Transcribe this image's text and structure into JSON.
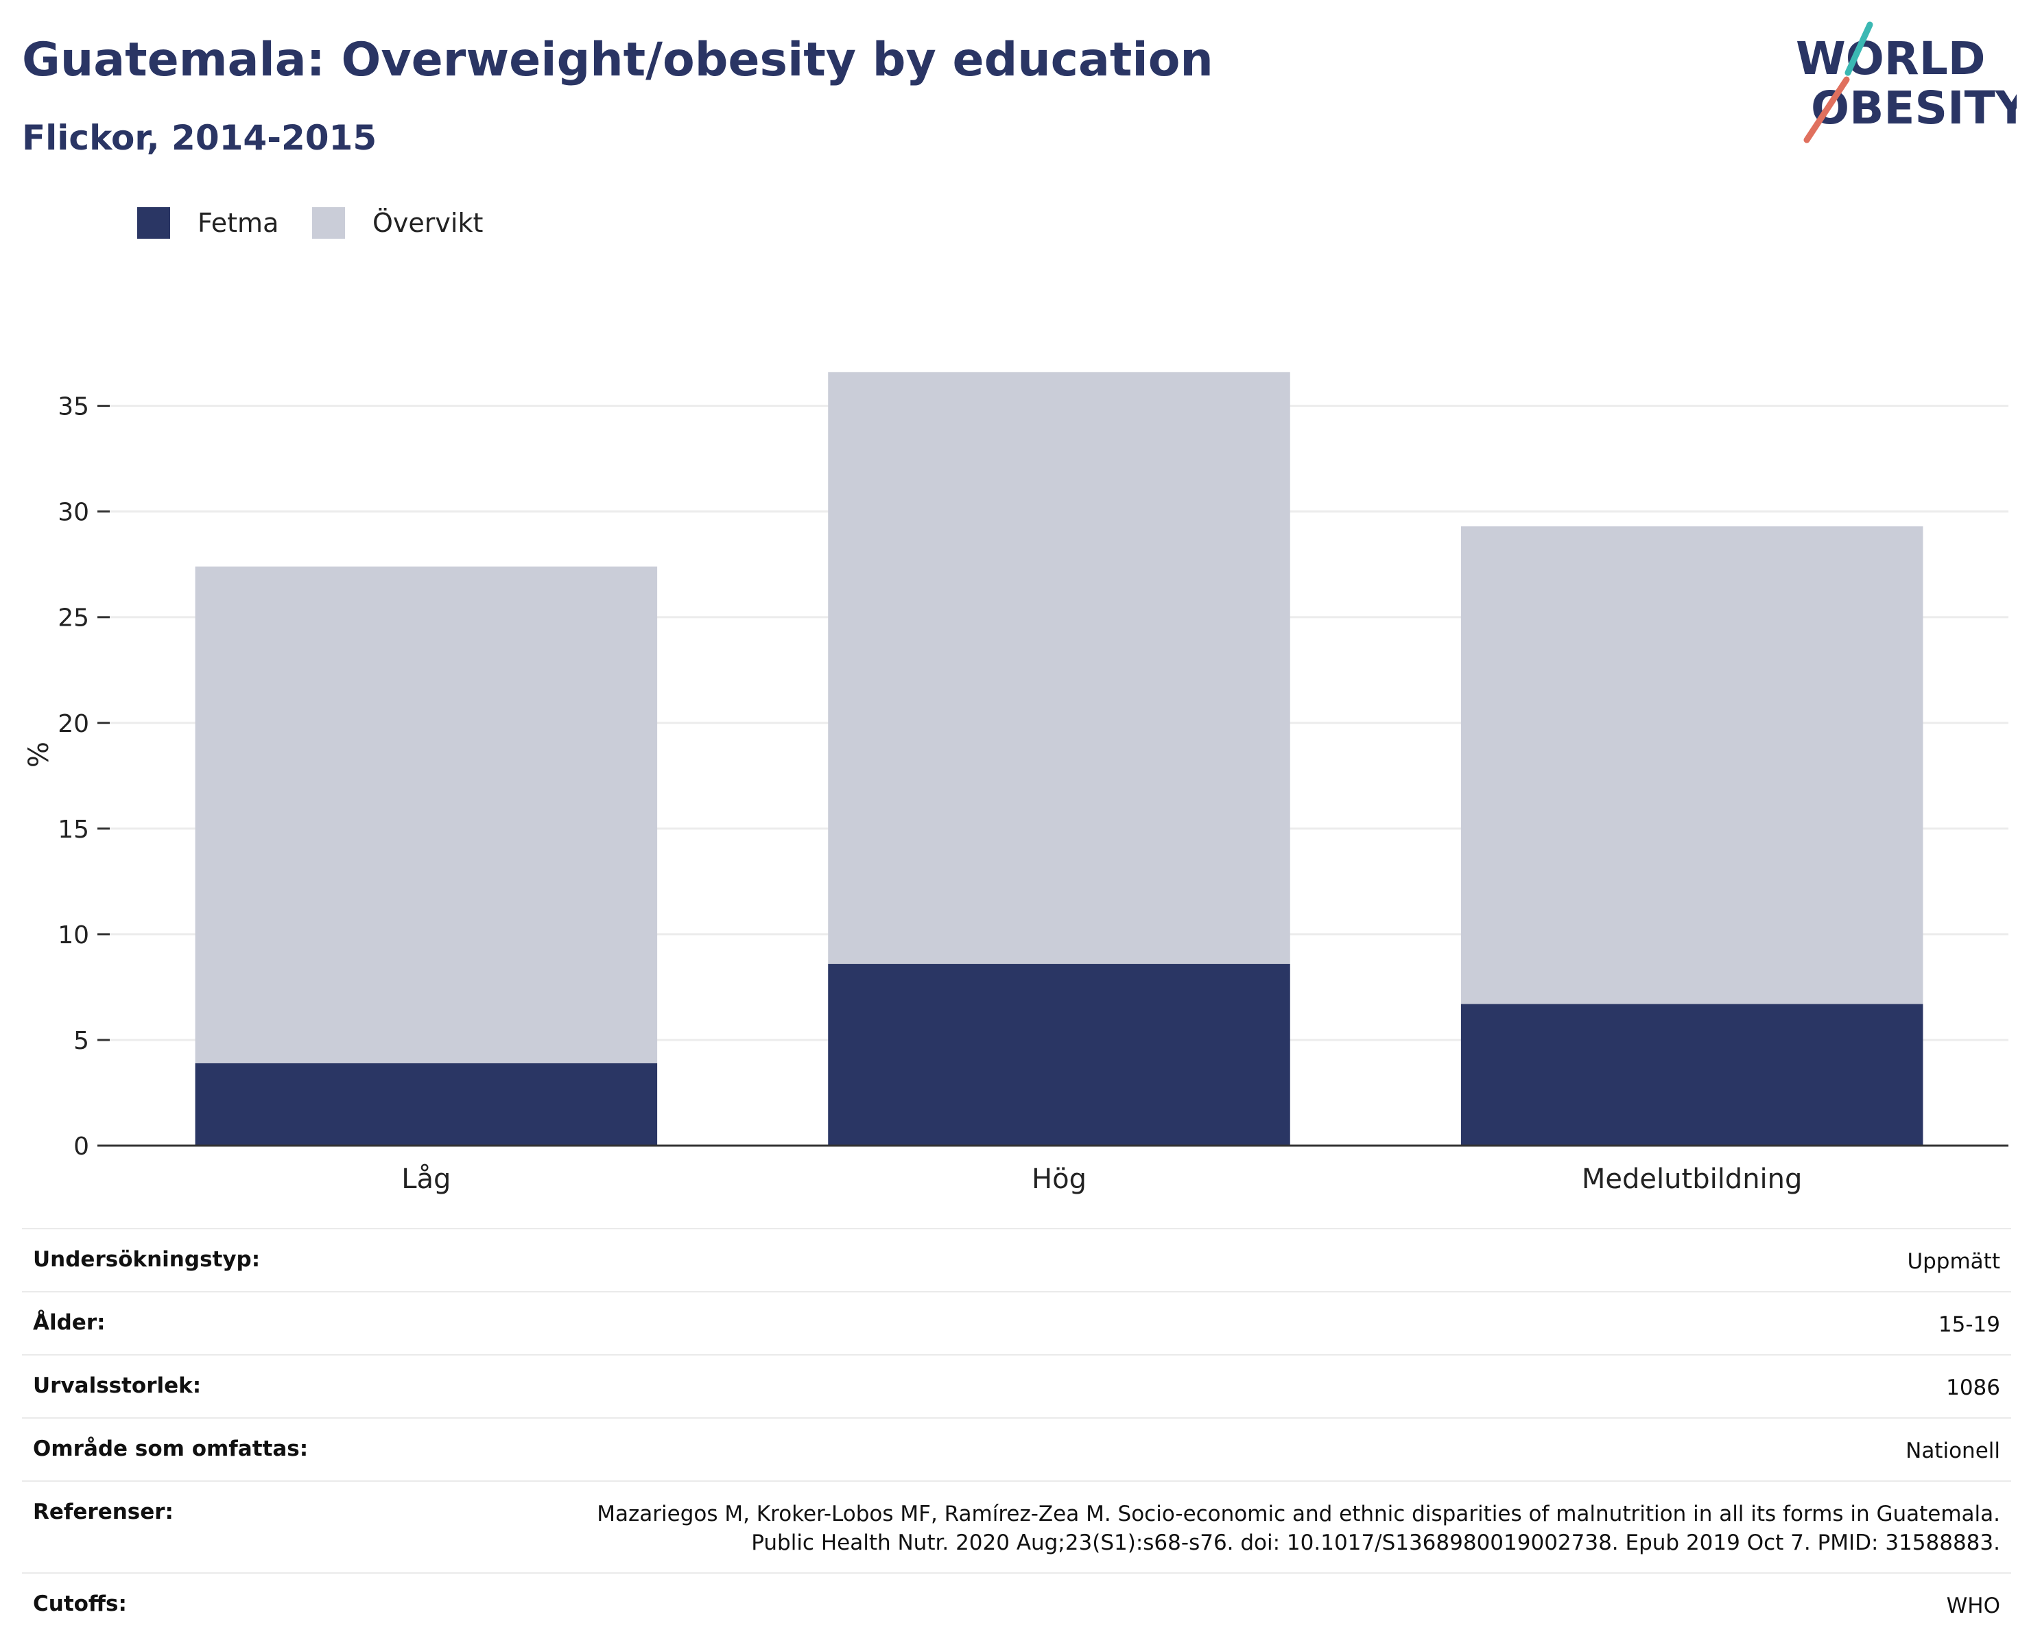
{
  "colors": {
    "title": "#2a3564",
    "obesity": "#2a3664",
    "overweight": "#cacdd8",
    "grid": "#ececec",
    "axis": "#333333",
    "logo_teal": "#3bb8b3",
    "logo_coral": "#e0705e"
  },
  "header": {
    "title": "Guatemala: Overweight/obesity by education",
    "subtitle": "Flickor, 2014-2015"
  },
  "logo": {
    "line1": "WORLD",
    "line2": "OBESITY"
  },
  "chart_data": {
    "type": "bar",
    "stacked": true,
    "categories": [
      "Låg",
      "Hög",
      "Medelutbildning"
    ],
    "series": [
      {
        "name": "Fetma",
        "values": [
          3.9,
          8.6,
          6.7
        ]
      },
      {
        "name": "Övervikt",
        "values": [
          23.5,
          28.0,
          22.6
        ]
      }
    ],
    "ylabel": "%",
    "yticks": [
      0,
      5,
      10,
      15,
      20,
      25,
      30,
      35
    ],
    "ylim": [
      0,
      37
    ],
    "grid": true,
    "legend_position": "top-left"
  },
  "info": {
    "rows": [
      {
        "key": "Undersökningstyp:",
        "value": "Uppmätt"
      },
      {
        "key": "Ålder:",
        "value": "15-19"
      },
      {
        "key": "Urvalsstorlek:",
        "value": "1086"
      },
      {
        "key": "Område som omfattas:",
        "value": "Nationell"
      },
      {
        "key": "Referenser:",
        "value": "Mazariegos M, Kroker-Lobos MF, Ramírez-Zea M. Socio-economic and ethnic disparities of malnutrition in all its forms in Guatemala.",
        "value2": "Public Health Nutr. 2020 Aug;23(S1):s68-s76. doi: 10.1017/S1368980019002738. Epub 2019 Oct 7. PMID: 31588883."
      },
      {
        "key": "Cutoffs:",
        "value": "WHO"
      }
    ]
  }
}
